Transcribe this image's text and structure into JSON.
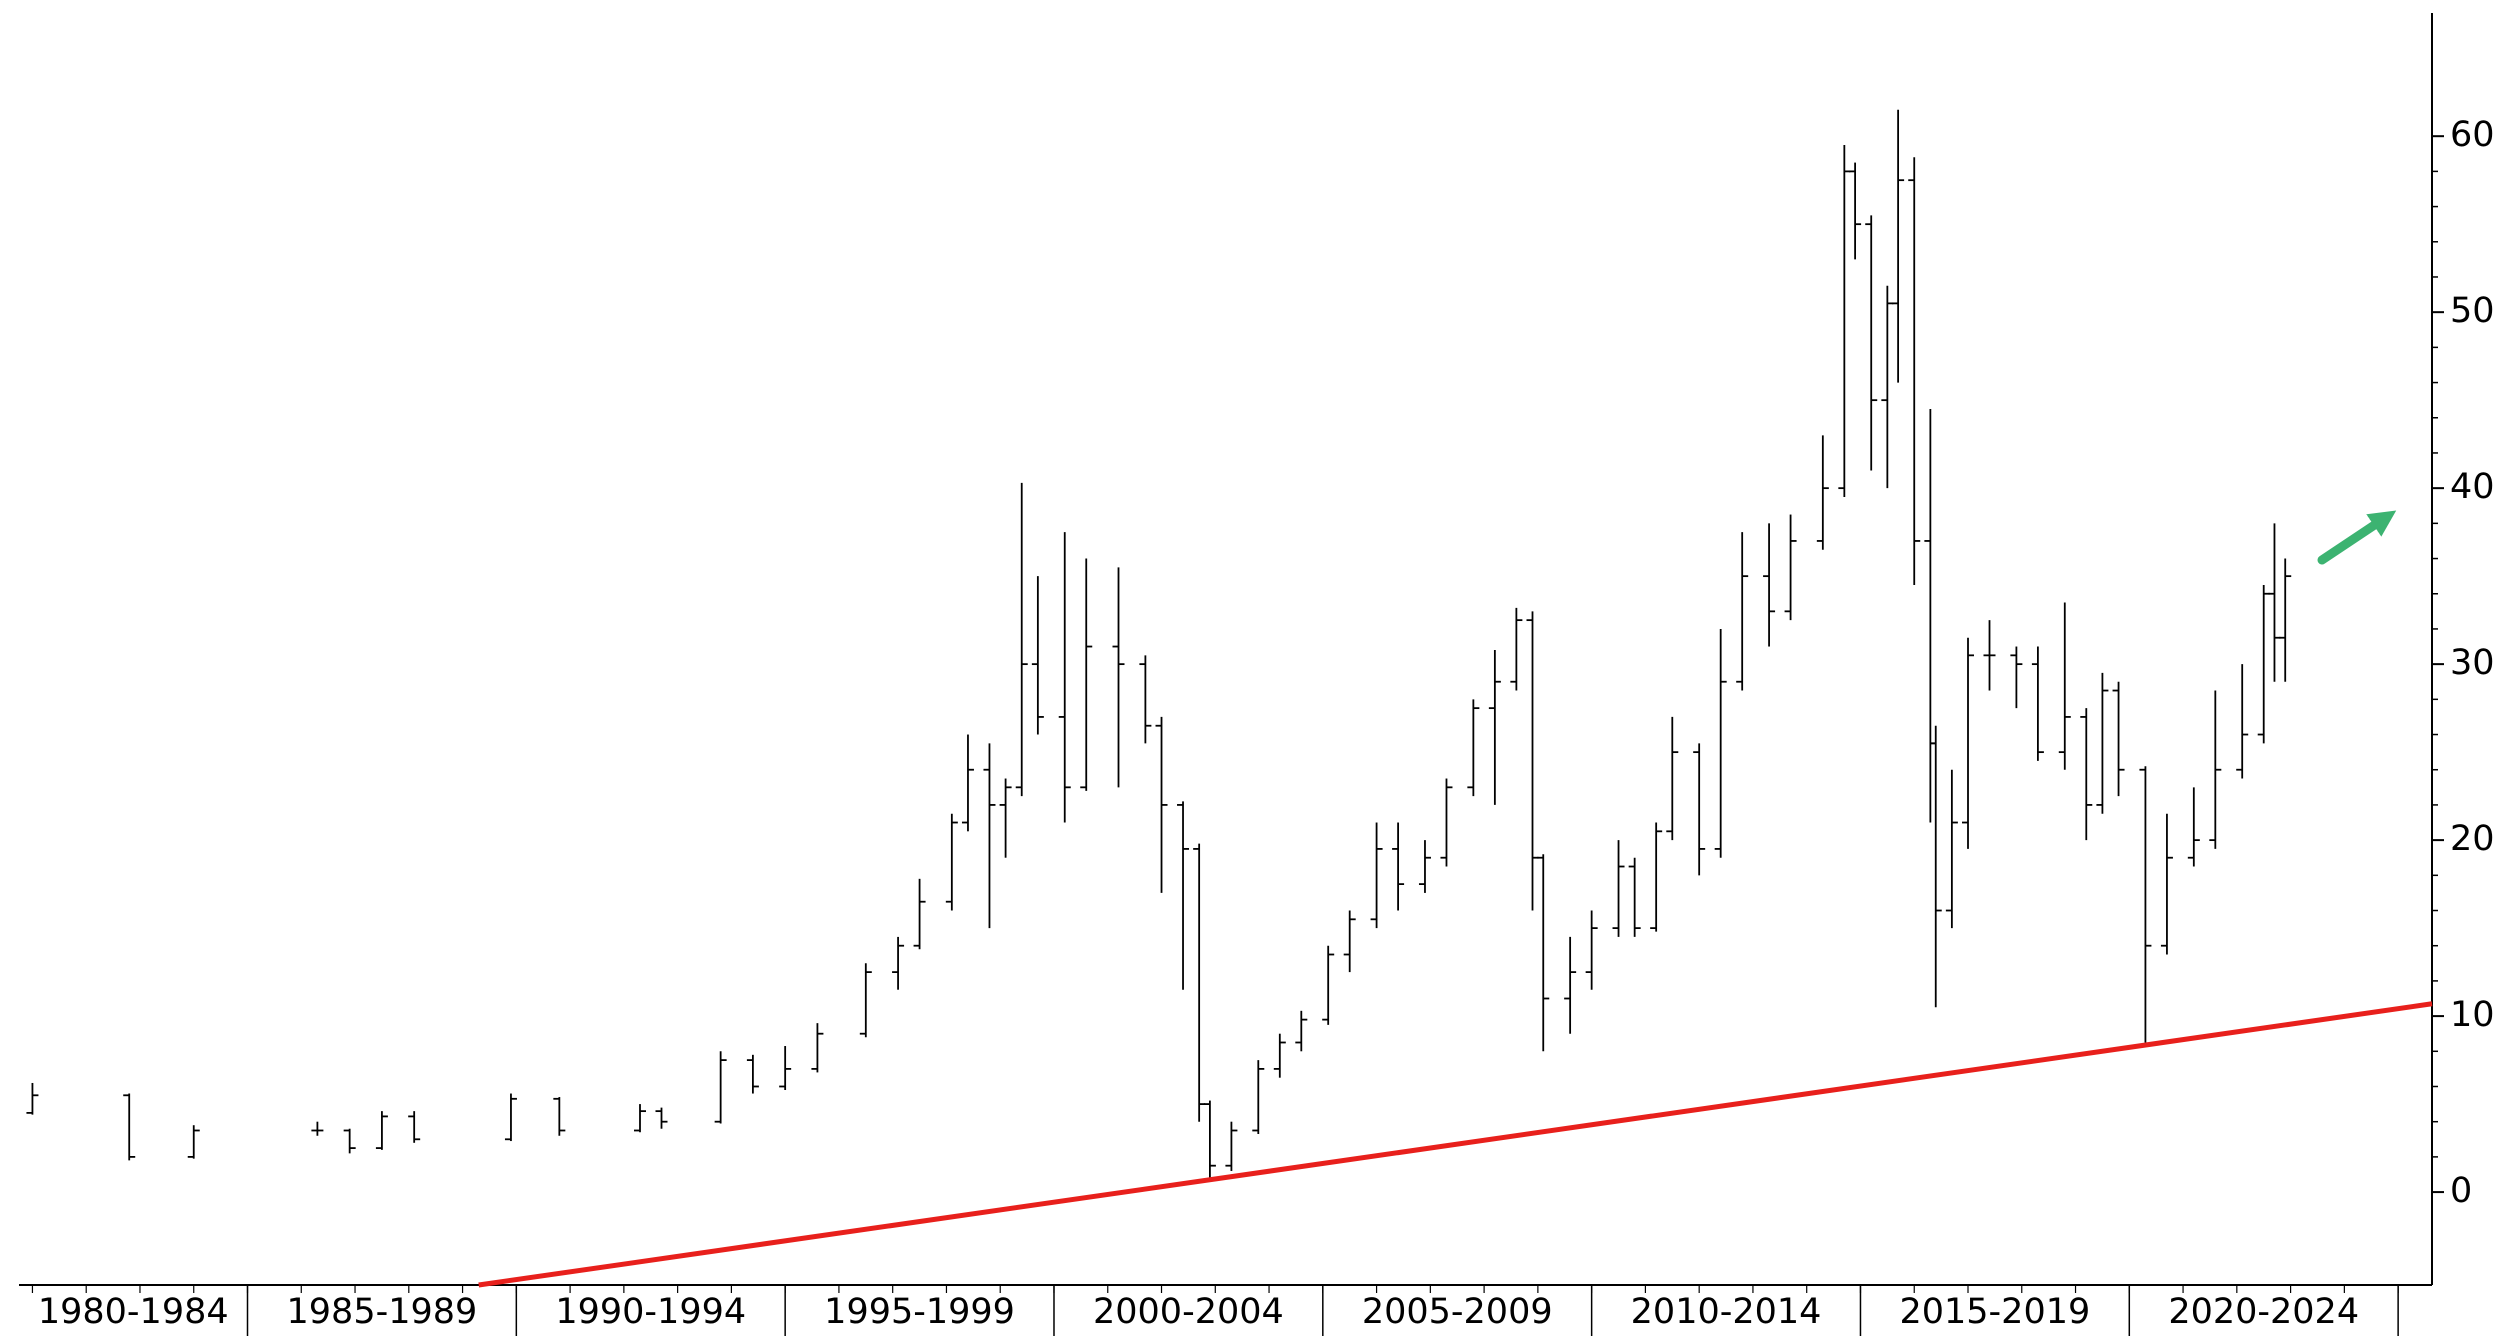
{
  "chart_data": {
    "type": "ohlc",
    "categories": [
      "1980-1984",
      "1985-1989",
      "1990-1994",
      "1995-1999",
      "2000-2004",
      "2005-2009",
      "2010-2014",
      "2015-2019",
      "2020-2024"
    ],
    "xlim": [
      1980.75,
      2025.63
    ],
    "xticks": [
      1985,
      1990,
      1995,
      2000,
      2005,
      2010,
      2015,
      2020,
      2025
    ],
    "ylim": [
      -5.28,
      67.0
    ],
    "yticks": [
      0,
      10,
      20,
      30,
      40,
      50,
      60
    ],
    "color": "#000000",
    "x": [
      1981.0,
      1982.8,
      1984.0,
      1986.3,
      1986.9,
      1987.5,
      1988.1,
      1989.9,
      1990.8,
      1992.3,
      1992.7,
      1993.8,
      1994.4,
      1995.0,
      1995.6,
      1996.5,
      1997.1,
      1997.5,
      1998.1,
      1998.4,
      1998.8,
      1999.1,
      1999.4,
      1999.7,
      2000.2,
      2000.6,
      2001.2,
      2001.7,
      2002.0,
      2002.4,
      2002.7,
      2002.9,
      2003.3,
      2003.8,
      2004.2,
      2004.6,
      2005.1,
      2005.5,
      2006.0,
      2006.4,
      2006.9,
      2007.3,
      2007.8,
      2008.2,
      2008.6,
      2008.9,
      2009.1,
      2009.6,
      2010.0,
      2010.5,
      2010.8,
      2011.2,
      2011.5,
      2012.0,
      2012.4,
      2012.8,
      2013.3,
      2013.7,
      2014.3,
      2014.7,
      2014.9,
      2015.2,
      2015.5,
      2015.7,
      2016.0,
      2016.3,
      2016.4,
      2016.7,
      2017.0,
      2017.4,
      2017.9,
      2018.3,
      2018.8,
      2019.2,
      2019.5,
      2019.8,
      2020.3,
      2020.7,
      2021.2,
      2021.6,
      2022.1,
      2022.5,
      2022.7,
      2022.9
    ],
    "open": [
      4.5,
      5.5,
      2.0,
      3.5,
      3.5,
      2.5,
      4.3,
      3.0,
      5.3,
      3.5,
      4.6,
      4.0,
      7.5,
      6.0,
      7.0,
      9.0,
      12.5,
      14.0,
      16.5,
      21.0,
      24.0,
      22.0,
      23.0,
      30.0,
      27.0,
      23.0,
      31.0,
      30.0,
      26.5,
      22.0,
      19.5,
      5.0,
      1.5,
      3.5,
      7.0,
      8.5,
      9.8,
      13.5,
      15.5,
      19.5,
      17.5,
      19.0,
      23.0,
      27.5,
      29.0,
      32.5,
      19.0,
      11.0,
      12.5,
      15.0,
      18.5,
      15.0,
      20.5,
      25.0,
      19.5,
      29.0,
      35.0,
      33.0,
      37.0,
      40.0,
      58.0,
      55.0,
      45.0,
      50.5,
      57.5,
      37.0,
      25.5,
      16.0,
      21.0,
      30.5,
      30.5,
      30.0,
      25.0,
      27.0,
      22.0,
      28.5,
      24.0,
      14.0,
      19.0,
      20.0,
      24.0,
      26.0,
      34.0,
      31.5
    ],
    "high": [
      6.2,
      5.6,
      3.8,
      4.0,
      3.6,
      4.6,
      4.6,
      5.6,
      5.4,
      5.0,
      4.8,
      8.0,
      7.8,
      8.3,
      9.6,
      13.0,
      14.5,
      17.8,
      21.5,
      26.0,
      25.5,
      23.5,
      40.3,
      35.0,
      37.5,
      36.0,
      35.5,
      30.5,
      27.0,
      22.2,
      19.8,
      5.2,
      4.0,
      7.5,
      9.0,
      10.3,
      14.0,
      16.0,
      21.0,
      21.0,
      20.0,
      23.5,
      28.0,
      30.8,
      33.2,
      33.0,
      19.2,
      14.5,
      16.0,
      20.0,
      19.0,
      21.0,
      27.0,
      25.5,
      32.0,
      37.5,
      38.0,
      38.5,
      43.0,
      59.5,
      58.5,
      55.5,
      51.5,
      61.5,
      58.8,
      44.5,
      26.5,
      24.0,
      31.5,
      32.5,
      31.0,
      31.0,
      33.5,
      27.5,
      29.5,
      29.0,
      24.2,
      21.5,
      23.0,
      28.5,
      30.0,
      34.5,
      38.0,
      36.0
    ],
    "low": [
      4.4,
      1.8,
      1.9,
      3.2,
      2.2,
      2.4,
      2.8,
      2.9,
      3.2,
      3.4,
      3.6,
      3.9,
      5.6,
      5.8,
      6.8,
      8.8,
      11.5,
      13.8,
      16.0,
      20.5,
      15.0,
      19.0,
      22.5,
      26.0,
      21.0,
      22.8,
      23.0,
      25.5,
      17.0,
      11.5,
      4.0,
      0.8,
      1.2,
      3.3,
      6.5,
      8.0,
      9.5,
      12.5,
      15.0,
      16.0,
      17.0,
      18.5,
      22.5,
      22.0,
      28.5,
      16.0,
      8.0,
      9.0,
      11.5,
      14.5,
      14.5,
      14.8,
      20.0,
      18.0,
      19.0,
      28.5,
      31.0,
      32.5,
      36.5,
      39.5,
      53.0,
      41.0,
      40.0,
      46.0,
      34.5,
      21.0,
      10.5,
      15.0,
      19.5,
      28.5,
      27.5,
      24.5,
      24.0,
      20.0,
      21.5,
      22.5,
      8.5,
      13.5,
      18.5,
      19.5,
      23.5,
      25.5,
      29.0,
      29.0
    ],
    "close": [
      5.5,
      2.0,
      3.5,
      3.5,
      2.5,
      4.3,
      3.0,
      5.3,
      3.5,
      4.6,
      4.0,
      7.5,
      6.0,
      7.0,
      9.0,
      12.5,
      14.0,
      16.5,
      21.0,
      24.0,
      22.0,
      23.0,
      30.0,
      27.0,
      23.0,
      31.0,
      30.0,
      26.5,
      22.0,
      19.5,
      5.0,
      1.5,
      3.5,
      7.0,
      8.5,
      9.8,
      13.5,
      15.5,
      19.5,
      17.5,
      19.0,
      23.0,
      27.5,
      29.0,
      32.5,
      19.0,
      11.0,
      12.5,
      15.0,
      18.5,
      15.0,
      20.5,
      25.0,
      19.5,
      29.0,
      35.0,
      33.0,
      37.0,
      40.0,
      58.0,
      55.0,
      45.0,
      50.5,
      57.5,
      37.0,
      25.5,
      16.0,
      21.0,
      30.5,
      30.5,
      30.0,
      25.0,
      27.0,
      22.0,
      28.5,
      24.0,
      14.0,
      19.0,
      20.0,
      24.0,
      26.0,
      34.0,
      31.5,
      35.0
    ],
    "trendline": {
      "color": "#e8201c",
      "x": [
        1989.3,
        2025.63
      ],
      "y": [
        -5.28,
        10.7
      ]
    }
  }
}
